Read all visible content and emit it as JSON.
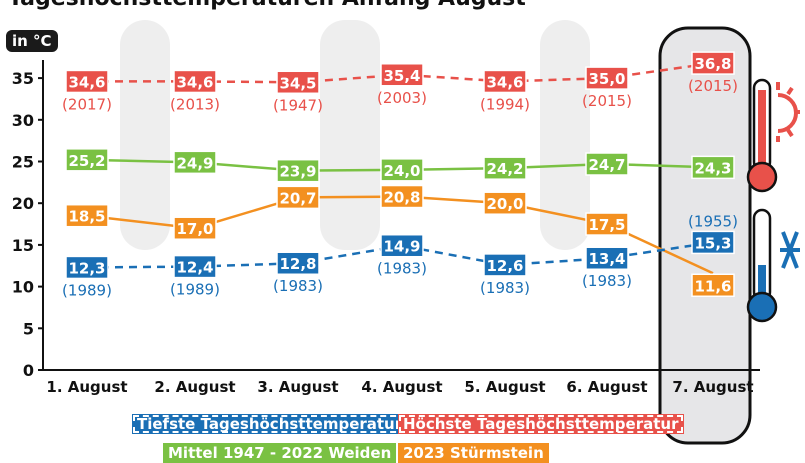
{
  "chart_data": {
    "type": "line",
    "title": "Tageshöchsttemperaturen Anfang August",
    "ylabel": "in °C",
    "ylim": [
      0,
      37
    ],
    "yticks": [
      0,
      5,
      10,
      15,
      20,
      25,
      30,
      35
    ],
    "categories": [
      "1. August",
      "2. August",
      "3. August",
      "4. August",
      "5. August",
      "6. August",
      "7. August"
    ],
    "grid": false,
    "legend_placement": "bottom",
    "series": [
      {
        "name": "Höchste Tageshöchsttemperatur",
        "color": "#e8514a",
        "style": "dashed",
        "values": [
          34.6,
          34.6,
          34.5,
          35.4,
          34.6,
          35.0,
          36.8
        ],
        "labels": [
          "34,6",
          "34,6",
          "34,5",
          "35,4",
          "34,6",
          "35,0",
          "36,8"
        ],
        "years": [
          "(2017)",
          "(2013)",
          "(1947)",
          "(2003)",
          "(1994)",
          "(2015)",
          "(2015)"
        ]
      },
      {
        "name": "Mittel 1947 - 2022 Weiden",
        "color": "#7ac143",
        "style": "solid",
        "values": [
          25.2,
          24.9,
          23.9,
          24.0,
          24.2,
          24.7,
          24.3
        ],
        "labels": [
          "25,2",
          "24,9",
          "23,9",
          "24,0",
          "24,2",
          "24,7",
          "24,3"
        ]
      },
      {
        "name": "2023 Stürmstein",
        "color": "#f39020",
        "style": "solid",
        "values": [
          18.5,
          17.0,
          20.7,
          20.8,
          20.0,
          17.5,
          11.6
        ],
        "labels": [
          "18,5",
          "17,0",
          "20,7",
          "20,8",
          "20,0",
          "17,5",
          "11,6"
        ]
      },
      {
        "name": "Tiefste Tageshöchsttemperatur",
        "color": "#1a6fb5",
        "style": "dashed",
        "values": [
          12.3,
          12.4,
          12.8,
          14.9,
          12.6,
          13.4,
          15.3
        ],
        "labels": [
          "12,3",
          "12,4",
          "12,8",
          "14,9",
          "12,6",
          "13,4",
          "15,3"
        ],
        "years": [
          "(1989)",
          "(1989)",
          "(1983)",
          "(1983)",
          "(1983)",
          "(1983)",
          "(1955)"
        ]
      }
    ],
    "highlight_category": "7. August"
  }
}
